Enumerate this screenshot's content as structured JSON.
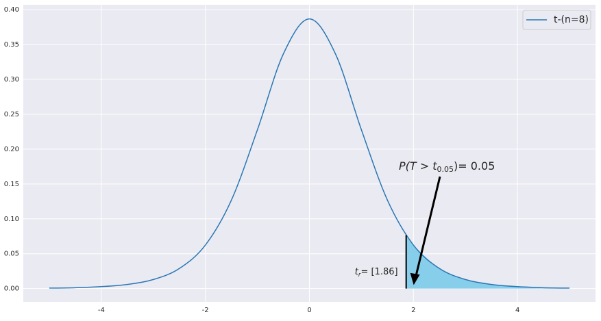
{
  "chart_data": {
    "type": "line",
    "x": [
      -5,
      -4.5,
      -4,
      -3.5,
      -3,
      -2.5,
      -2,
      -1.5,
      -1,
      -0.5,
      0,
      0.5,
      1,
      1.5,
      2,
      2.5,
      3,
      3.5,
      4,
      4.5,
      5
    ],
    "series": [
      {
        "name": "t-(n=8)",
        "color": "#2a77b4",
        "values": [
          0.0007,
          0.0013,
          0.0028,
          0.0059,
          0.013,
          0.0288,
          0.0624,
          0.1268,
          0.2276,
          0.3367,
          0.3867,
          0.3367,
          0.2276,
          0.1268,
          0.0624,
          0.0288,
          0.013,
          0.0059,
          0.0028,
          0.0013,
          0.0007
        ]
      }
    ],
    "fill": {
      "color": "#87ceeb",
      "x": [
        1.86,
        2,
        2.5,
        3,
        3.5,
        4,
        4.5,
        5
      ],
      "values": [
        0.0767,
        0.0624,
        0.0288,
        0.013,
        0.0059,
        0.0028,
        0.0013,
        0.0007
      ]
    },
    "threshold": 1.86,
    "threshold_label": {
      "var": "t",
      "sub": "r",
      "text": "= [1.86]"
    },
    "probability_label": {
      "text1": "P(T > t",
      "sub": "0.05",
      "text2": ")= 0.05"
    },
    "xlim": [
      -5.5,
      5.5
    ],
    "ylim": [
      -0.019,
      0.407
    ],
    "xticks": [
      -4,
      -2,
      0,
      2,
      4
    ],
    "yticks": [
      {
        "value": 0,
        "label": "0.00"
      },
      {
        "value": 0.05,
        "label": "0.05"
      },
      {
        "value": 0.1,
        "label": "0.10"
      },
      {
        "value": 0.15,
        "label": "0.15"
      },
      {
        "value": 0.2,
        "label": "0.20"
      },
      {
        "value": 0.25,
        "label": "0.25"
      },
      {
        "value": 0.3,
        "label": "0.30"
      },
      {
        "value": 0.35,
        "label": "0.35"
      },
      {
        "value": 0.4,
        "label": "0.40"
      }
    ],
    "grid": true,
    "legend": "upper right"
  }
}
